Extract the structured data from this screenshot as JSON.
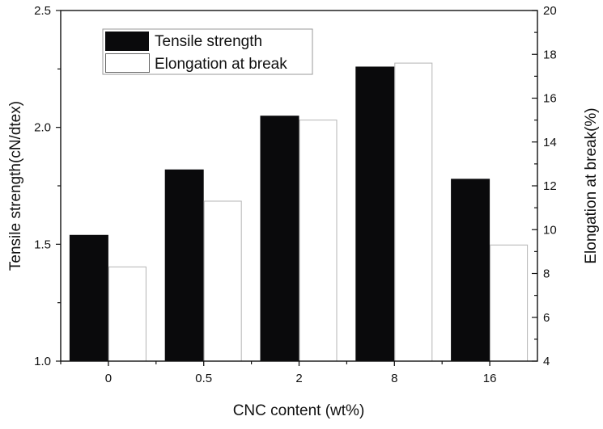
{
  "chart_data": {
    "type": "bar",
    "title": "",
    "xlabel": "CNC content (wt%)",
    "ylabel": "Tensile strength(cN/dtex)",
    "y2label": "Elongation at break(%)",
    "categories": [
      "0",
      "0.5",
      "2",
      "8",
      "16"
    ],
    "ylim": [
      1.0,
      2.5
    ],
    "y2lim": [
      4,
      20
    ],
    "yticks": [
      "1.0",
      "1.5",
      "2.0",
      "2.5"
    ],
    "y2ticks": [
      "4",
      "6",
      "8",
      "10",
      "12",
      "14",
      "16",
      "18",
      "20"
    ],
    "legend_position": "top-left",
    "series": [
      {
        "name": "Tensile strength",
        "axis": "left",
        "color": "#0a0a0c",
        "values": [
          1.54,
          1.82,
          2.05,
          2.26,
          1.78
        ]
      },
      {
        "name": "Elongation at break",
        "axis": "right",
        "color": "#ffffff",
        "values": [
          8.3,
          11.3,
          15.0,
          17.6,
          9.3
        ]
      }
    ]
  }
}
